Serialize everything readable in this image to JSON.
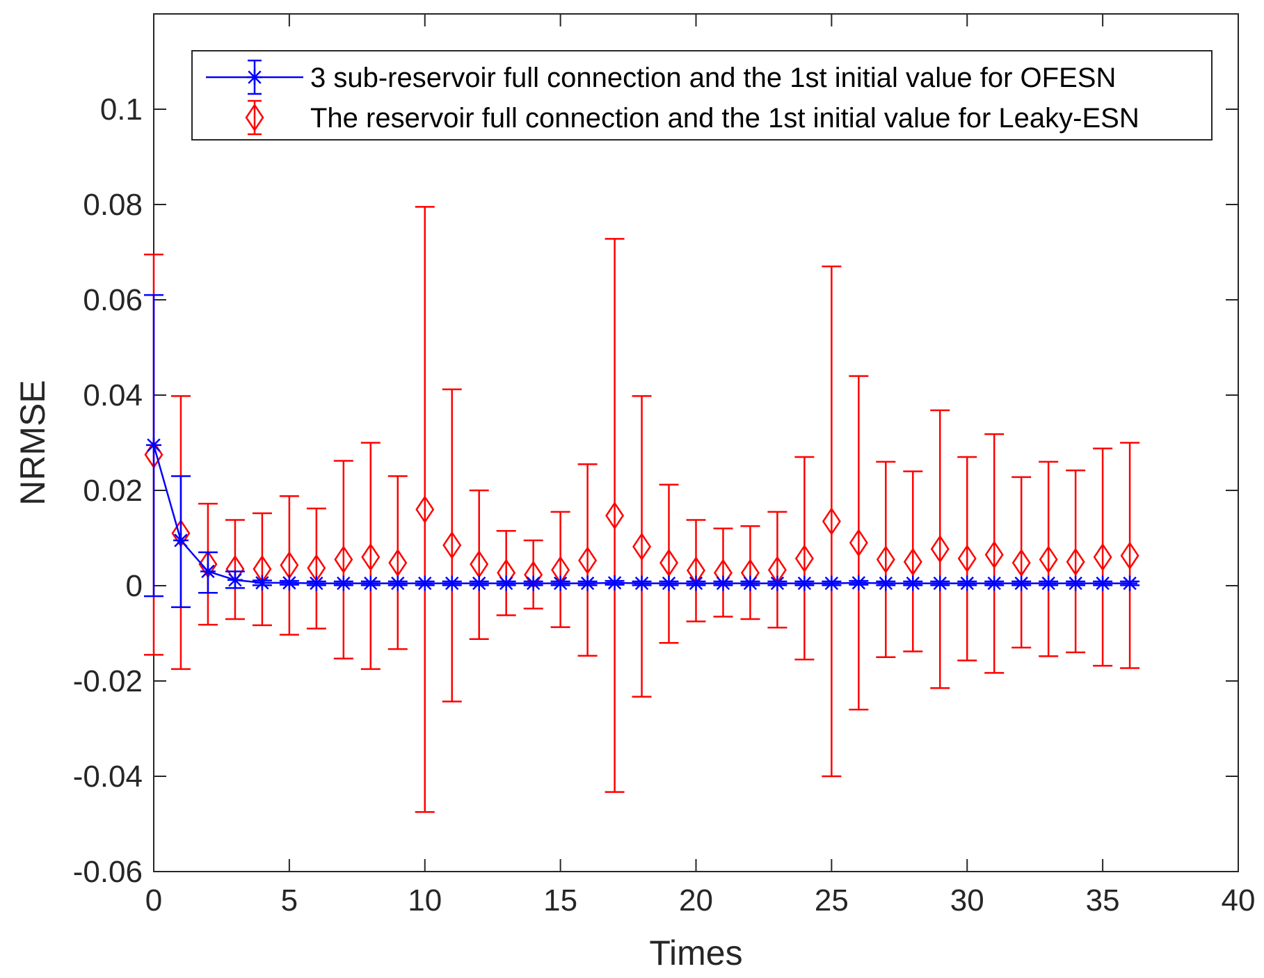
{
  "chart_data": {
    "type": "errorbar",
    "title": "",
    "xlabel": "Times",
    "ylabel": "NRMSE",
    "xlim": [
      0,
      40
    ],
    "ylim": [
      -0.06,
      0.12
    ],
    "x_ticks": [
      0,
      5,
      10,
      15,
      20,
      25,
      30,
      35,
      40
    ],
    "x_tick_labels": [
      "0",
      "5",
      "10",
      "15",
      "20",
      "25",
      "30",
      "35",
      "40"
    ],
    "y_ticks": [
      -0.06,
      -0.04,
      -0.02,
      0,
      0.02,
      0.04,
      0.06,
      0.08,
      0.1
    ],
    "y_tick_labels": [
      "-0.06",
      "-0.04",
      "-0.02",
      "0",
      "0.02",
      "0.04",
      "0.06",
      "0.08",
      "0.1"
    ],
    "grid": false,
    "box": true,
    "legend_position": "top",
    "series": [
      {
        "name": "3 sub-reservoir full connection and the 1st initial value for OFESN",
        "color": "#0000ff",
        "marker": "star",
        "line": true,
        "x": [
          0,
          1,
          2,
          3,
          4,
          5,
          6,
          7,
          8,
          9,
          10,
          11,
          12,
          13,
          14,
          15,
          16,
          17,
          18,
          19,
          20,
          21,
          22,
          23,
          24,
          25,
          26,
          27,
          28,
          29,
          30,
          31,
          32,
          33,
          34,
          35,
          36
        ],
        "y": [
          0.0295,
          0.0095,
          0.003,
          0.0012,
          0.0006,
          0.0006,
          0.0005,
          0.0005,
          0.0005,
          0.0005,
          0.0005,
          0.0005,
          0.0005,
          0.0005,
          0.0005,
          0.0005,
          0.0005,
          0.0006,
          0.0005,
          0.0005,
          0.0005,
          0.0005,
          0.0005,
          0.0005,
          0.0005,
          0.0005,
          0.0006,
          0.0005,
          0.0005,
          0.0005,
          0.0005,
          0.0005,
          0.0005,
          0.0005,
          0.0005,
          0.0005,
          0.0005
        ],
        "lower": [
          -0.0022,
          -0.0045,
          -0.0015,
          -0.0005,
          0.0001,
          0.0002,
          0.0001,
          0.0001,
          0.0001,
          0.0001,
          0.0001,
          0.0001,
          0.0001,
          0.0001,
          0.0001,
          0.0001,
          0.0001,
          0.0002,
          0.0001,
          0.0001,
          0.0001,
          0.0001,
          0.0001,
          0.0001,
          0.0001,
          0.0001,
          0.0002,
          0.0001,
          0.0001,
          0.0001,
          0.0001,
          0.0001,
          0.0001,
          0.0001,
          0.0001,
          0.0001,
          0.0001
        ],
        "upper": [
          0.061,
          0.023,
          0.007,
          0.003,
          0.0011,
          0.001,
          0.0009,
          0.0009,
          0.0009,
          0.0009,
          0.0009,
          0.0009,
          0.0009,
          0.0009,
          0.0009,
          0.0009,
          0.0009,
          0.001,
          0.0009,
          0.0009,
          0.0009,
          0.0009,
          0.0009,
          0.0009,
          0.0009,
          0.0009,
          0.001,
          0.0009,
          0.0009,
          0.0009,
          0.0009,
          0.0009,
          0.0009,
          0.0009,
          0.0009,
          0.0009,
          0.0009
        ]
      },
      {
        "name": "The reservoir full connection and the 1st initial value for Leaky-ESN",
        "color": "#ff0000",
        "marker": "diamond",
        "line": false,
        "x": [
          0,
          1,
          2,
          3,
          4,
          5,
          6,
          7,
          8,
          9,
          10,
          11,
          12,
          13,
          14,
          15,
          16,
          17,
          18,
          19,
          20,
          21,
          22,
          23,
          24,
          25,
          26,
          27,
          28,
          29,
          30,
          31,
          32,
          33,
          34,
          35,
          36
        ],
        "y": [
          0.0275,
          0.011,
          0.0045,
          0.0035,
          0.0035,
          0.0043,
          0.0037,
          0.0055,
          0.006,
          0.0048,
          0.016,
          0.0085,
          0.0045,
          0.0027,
          0.0023,
          0.0033,
          0.0053,
          0.0147,
          0.0082,
          0.0048,
          0.0032,
          0.0027,
          0.0027,
          0.0033,
          0.0057,
          0.0135,
          0.009,
          0.0055,
          0.005,
          0.0077,
          0.0057,
          0.0065,
          0.0048,
          0.0055,
          0.005,
          0.006,
          0.0063
        ],
        "lower": [
          -0.0145,
          -0.0175,
          -0.0082,
          -0.007,
          -0.0083,
          -0.0103,
          -0.009,
          -0.0153,
          -0.0175,
          -0.0133,
          -0.0475,
          -0.0243,
          -0.0112,
          -0.0062,
          -0.0048,
          -0.0087,
          -0.0147,
          -0.0433,
          -0.0233,
          -0.012,
          -0.0075,
          -0.0065,
          -0.007,
          -0.0088,
          -0.0155,
          -0.04,
          -0.026,
          -0.015,
          -0.0138,
          -0.0215,
          -0.0157,
          -0.0183,
          -0.013,
          -0.0148,
          -0.014,
          -0.0168,
          -0.0173
        ],
        "upper": [
          0.0695,
          0.0398,
          0.0172,
          0.0138,
          0.0152,
          0.0188,
          0.0162,
          0.0262,
          0.03,
          0.023,
          0.0795,
          0.0412,
          0.02,
          0.0115,
          0.0095,
          0.0155,
          0.0255,
          0.0728,
          0.0398,
          0.0212,
          0.0138,
          0.012,
          0.0125,
          0.0155,
          0.027,
          0.067,
          0.044,
          0.026,
          0.024,
          0.0368,
          0.027,
          0.0318,
          0.0228,
          0.026,
          0.0242,
          0.0288,
          0.03
        ]
      }
    ]
  }
}
